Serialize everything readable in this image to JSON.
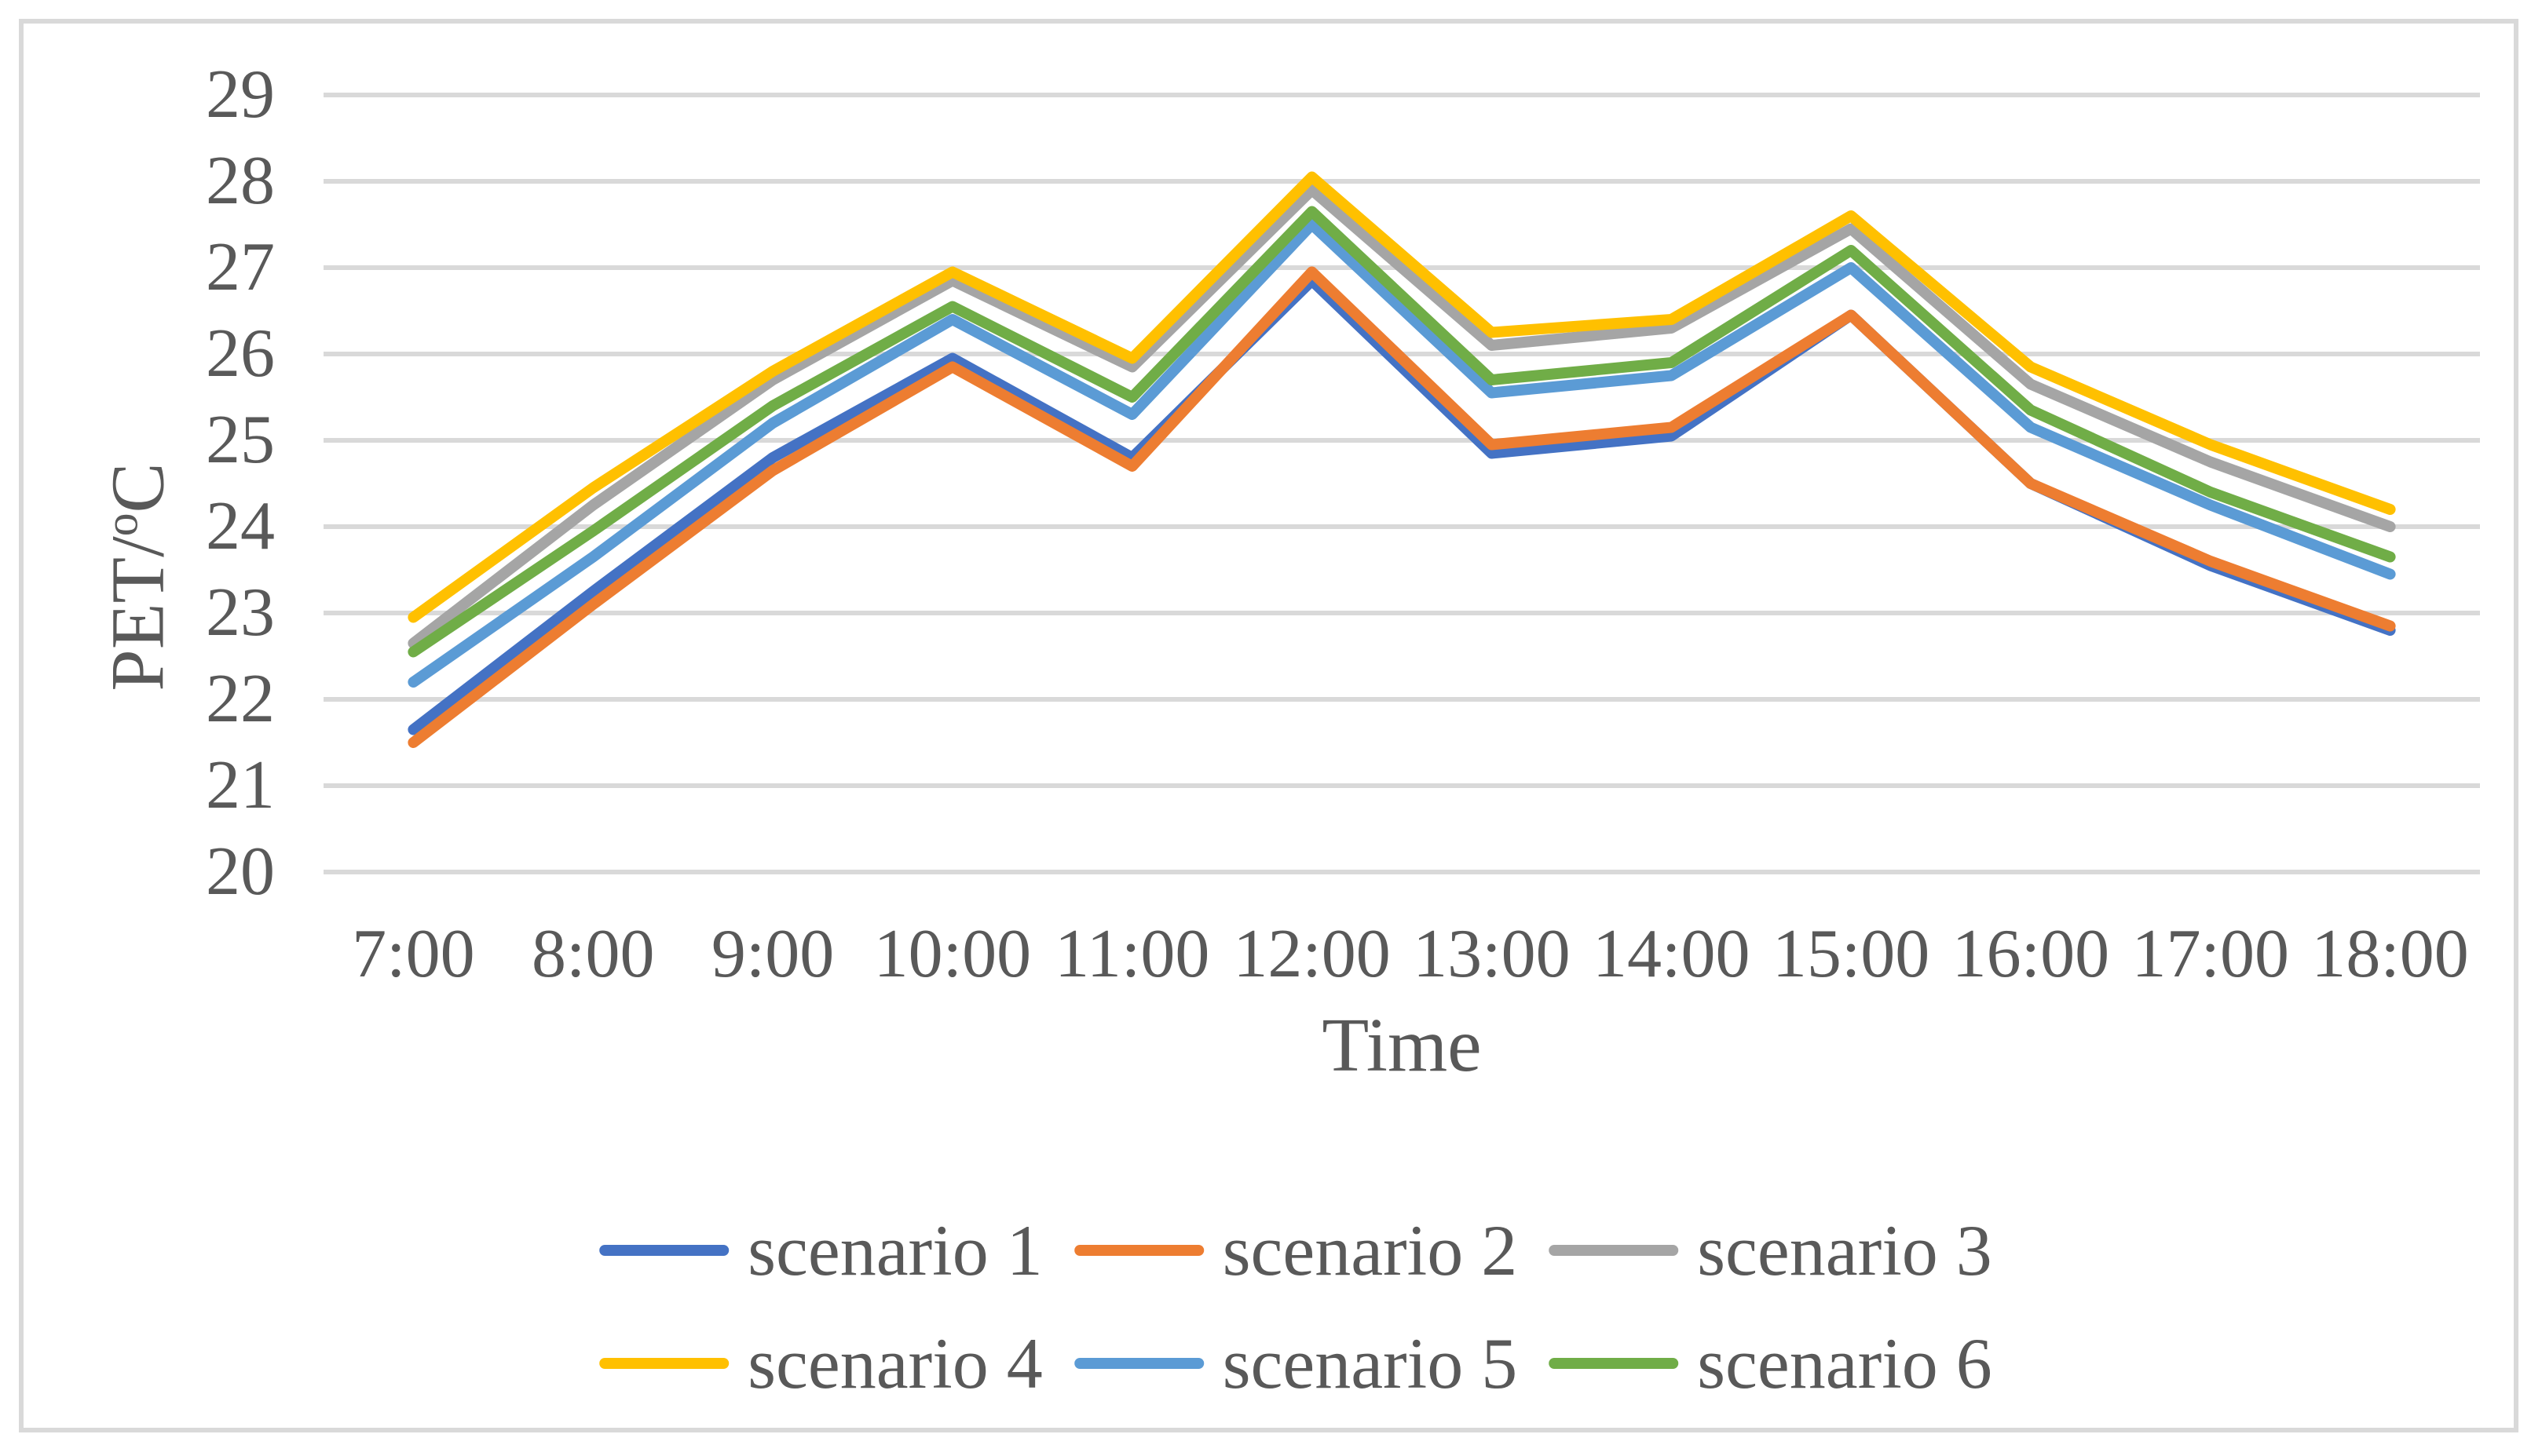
{
  "figure": {
    "background": "#ffffff",
    "border_color": "#d9d9d9",
    "gridline_color": "#d9d9d9",
    "text_color": "#595959"
  },
  "chart_data": {
    "type": "line",
    "title": "",
    "xlabel": "Time",
    "ylabel": "PET/oC",
    "ylabel_parts": {
      "pre": "PET/",
      "sup": "o",
      "post": "C"
    },
    "x_categories": [
      "7:00",
      "8:00",
      "9:00",
      "10:00",
      "11:00",
      "12:00",
      "13:00",
      "14:00",
      "15:00",
      "16:00",
      "17:00",
      "18:00"
    ],
    "y_ticks": [
      "20",
      "21",
      "22",
      "23",
      "24",
      "25",
      "26",
      "27",
      "28",
      "29"
    ],
    "ylim": [
      20,
      29
    ],
    "grid": "horizontal",
    "legend_position": "bottom",
    "legend_rows": [
      [
        "scenario 1",
        "scenario 2",
        "scenario 3"
      ],
      [
        "scenario 4",
        "scenario 5",
        "scenario 6"
      ]
    ],
    "series": [
      {
        "name": "scenario 1",
        "color": "#4472c4",
        "values": [
          21.65,
          23.25,
          24.8,
          25.95,
          24.8,
          26.85,
          24.85,
          25.05,
          26.45,
          24.5,
          23.55,
          22.8
        ]
      },
      {
        "name": "scenario 2",
        "color": "#ed7d31",
        "values": [
          21.5,
          23.1,
          24.65,
          25.85,
          24.7,
          26.95,
          24.95,
          25.15,
          26.45,
          24.5,
          23.6,
          22.85
        ]
      },
      {
        "name": "scenario 3",
        "color": "#a5a5a5",
        "values": [
          22.65,
          24.25,
          25.7,
          26.85,
          25.85,
          27.9,
          26.1,
          26.3,
          27.45,
          25.65,
          24.75,
          24.0
        ]
      },
      {
        "name": "scenario 4",
        "color": "#ffc000",
        "values": [
          22.95,
          24.45,
          25.8,
          26.95,
          25.95,
          28.05,
          26.25,
          26.4,
          27.6,
          25.85,
          24.95,
          24.2
        ]
      },
      {
        "name": "scenario 5",
        "color": "#5b9bd5",
        "values": [
          22.2,
          23.65,
          25.2,
          26.4,
          25.3,
          27.5,
          25.55,
          25.75,
          27.0,
          25.15,
          24.25,
          23.45
        ]
      },
      {
        "name": "scenario 6",
        "color": "#70ad47",
        "values": [
          22.55,
          23.95,
          25.4,
          26.55,
          25.5,
          27.65,
          25.7,
          25.9,
          27.2,
          25.35,
          24.4,
          23.65
        ]
      }
    ]
  }
}
